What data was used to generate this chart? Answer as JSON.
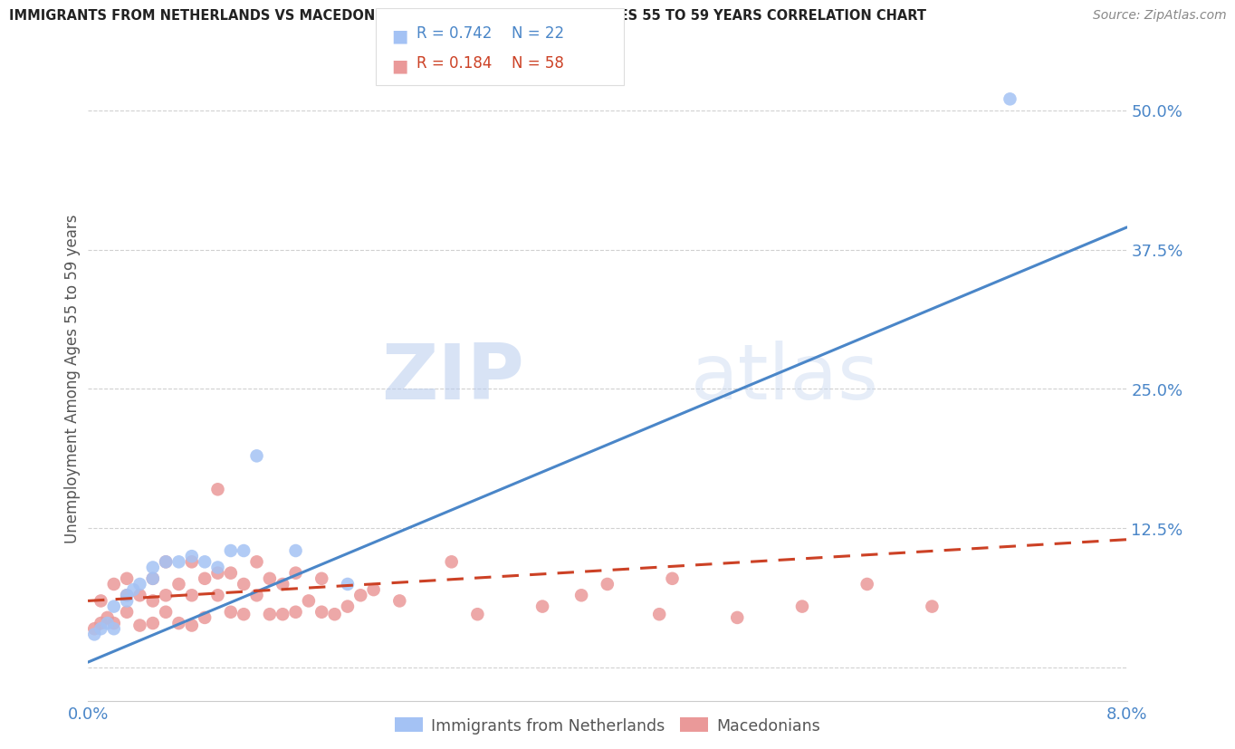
{
  "title": "IMMIGRANTS FROM NETHERLANDS VS MACEDONIAN UNEMPLOYMENT AMONG AGES 55 TO 59 YEARS CORRELATION CHART",
  "source": "Source: ZipAtlas.com",
  "ylabel": "Unemployment Among Ages 55 to 59 years",
  "xlim": [
    0.0,
    0.08
  ],
  "ylim": [
    -0.03,
    0.55
  ],
  "xticks": [
    0.0,
    0.02,
    0.04,
    0.06,
    0.08
  ],
  "xtick_labels": [
    "0.0%",
    "",
    "",
    "",
    "8.0%"
  ],
  "ytick_positions": [
    0.0,
    0.125,
    0.25,
    0.375,
    0.5
  ],
  "ytick_labels": [
    "",
    "12.5%",
    "25.0%",
    "37.5%",
    "50.0%"
  ],
  "watermark_zip": "ZIP",
  "watermark_atlas": "atlas",
  "legend_r1": "R = 0.742",
  "legend_n1": "N = 22",
  "legend_r2": "R = 0.184",
  "legend_n2": "N = 58",
  "blue_color": "#a4c2f4",
  "pink_color": "#ea9999",
  "line_blue": "#4a86c8",
  "line_pink": "#cc4125",
  "axis_label_color": "#4a86c8",
  "tick_color": "#4a86c8",
  "blue_scatter_x": [
    0.0005,
    0.001,
    0.0015,
    0.002,
    0.002,
    0.003,
    0.003,
    0.0035,
    0.004,
    0.005,
    0.005,
    0.006,
    0.007,
    0.008,
    0.009,
    0.01,
    0.011,
    0.012,
    0.013,
    0.016,
    0.02,
    0.071
  ],
  "blue_scatter_y": [
    0.03,
    0.035,
    0.04,
    0.035,
    0.055,
    0.06,
    0.065,
    0.07,
    0.075,
    0.08,
    0.09,
    0.095,
    0.095,
    0.1,
    0.095,
    0.09,
    0.105,
    0.105,
    0.19,
    0.105,
    0.075,
    0.51
  ],
  "pink_scatter_x": [
    0.0005,
    0.001,
    0.001,
    0.0015,
    0.002,
    0.002,
    0.003,
    0.003,
    0.003,
    0.004,
    0.004,
    0.005,
    0.005,
    0.005,
    0.006,
    0.006,
    0.006,
    0.007,
    0.007,
    0.008,
    0.008,
    0.008,
    0.009,
    0.009,
    0.01,
    0.01,
    0.01,
    0.011,
    0.011,
    0.012,
    0.012,
    0.013,
    0.013,
    0.014,
    0.014,
    0.015,
    0.015,
    0.016,
    0.016,
    0.017,
    0.018,
    0.018,
    0.019,
    0.02,
    0.021,
    0.022,
    0.024,
    0.028,
    0.03,
    0.035,
    0.038,
    0.04,
    0.044,
    0.045,
    0.05,
    0.055,
    0.06,
    0.065
  ],
  "pink_scatter_y": [
    0.035,
    0.04,
    0.06,
    0.045,
    0.04,
    0.075,
    0.05,
    0.065,
    0.08,
    0.038,
    0.065,
    0.04,
    0.06,
    0.08,
    0.05,
    0.065,
    0.095,
    0.04,
    0.075,
    0.038,
    0.065,
    0.095,
    0.045,
    0.08,
    0.065,
    0.085,
    0.16,
    0.05,
    0.085,
    0.048,
    0.075,
    0.065,
    0.095,
    0.048,
    0.08,
    0.048,
    0.075,
    0.05,
    0.085,
    0.06,
    0.05,
    0.08,
    0.048,
    0.055,
    0.065,
    0.07,
    0.06,
    0.095,
    0.048,
    0.055,
    0.065,
    0.075,
    0.048,
    0.08,
    0.045,
    0.055,
    0.075,
    0.055
  ],
  "blue_line_x": [
    0.0,
    0.08
  ],
  "blue_line_y": [
    0.005,
    0.395
  ],
  "pink_line_x": [
    0.0,
    0.08
  ],
  "pink_line_y": [
    0.06,
    0.115
  ],
  "grid_color": "#cccccc",
  "background_color": "#ffffff",
  "legend_label1": "Immigrants from Netherlands",
  "legend_label2": "Macedonians"
}
